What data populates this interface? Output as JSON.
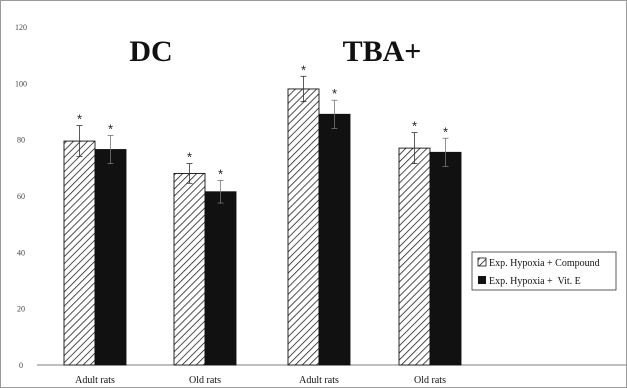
{
  "chart_data": {
    "type": "bar",
    "group_titles": [
      "DC",
      "TBA+"
    ],
    "categories": [
      "Adult rats",
      "Old rats",
      "Adult rats",
      "Old rats"
    ],
    "series": [
      {
        "name": "Exp. Hypoxia + Compound",
        "pattern": "diagonal-hatch",
        "color": "#ffffff",
        "values": [
          79.5,
          68,
          98,
          77
        ],
        "errors": [
          5.5,
          3.5,
          4.5,
          5.5
        ],
        "significance": [
          "*",
          "*",
          "*",
          "*"
        ]
      },
      {
        "name": "Exp. Hypoxia +  Vit. E",
        "pattern": "solid",
        "color": "#111111",
        "values": [
          76.5,
          61.5,
          89,
          75.5
        ],
        "errors": [
          5,
          4,
          5,
          5
        ],
        "significance": [
          "*",
          "*",
          "*",
          "*"
        ]
      }
    ],
    "yticks": [
      0,
      20,
      40,
      60,
      80,
      100,
      120
    ],
    "ylim": [
      0,
      120
    ],
    "grid": false,
    "legend_position": "right",
    "title": "",
    "xlabel": "",
    "ylabel": ""
  }
}
